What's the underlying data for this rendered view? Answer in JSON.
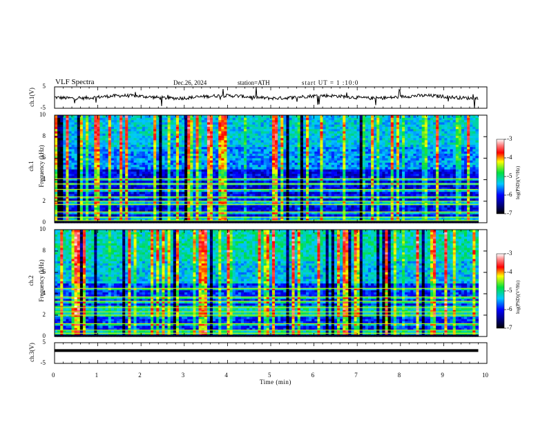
{
  "header": {
    "title": "VLF Spectra",
    "date": "Dec.26, 2024",
    "station": "station=ATH",
    "start": "start UT = 1 :10:0"
  },
  "chart_data": [
    {
      "type": "line",
      "ylabel": "ch.1(V)",
      "ylim": [
        -5,
        5
      ],
      "yticks": [
        "5",
        "-5"
      ],
      "xlim": [
        0,
        10
      ],
      "series_shape": "noisy waveform near 0 V with sharp spikes",
      "baseline_v": 0.3
    },
    {
      "type": "heatmap",
      "ylabel_top": "ch.1",
      "ylabel": "Frequency (kHz)",
      "xlim": [
        0,
        10
      ],
      "ylim": [
        0,
        10
      ],
      "yticks": [
        "0",
        "2",
        "4",
        "6",
        "8",
        "10"
      ],
      "data_end_min": 9.8,
      "colorbar": {
        "label": "log(PSD)(V²/Hz)",
        "range": [
          -7,
          -3
        ],
        "ticks": [
          "-3",
          "-4",
          "-5",
          "-6",
          "-7"
        ]
      },
      "bands_khz": [
        0.2,
        0.5,
        1.0,
        1.7,
        2.0,
        2.4,
        3.1,
        3.6,
        4.1
      ]
    },
    {
      "type": "heatmap",
      "ylabel_top": "ch.2",
      "ylabel": "Frequency (kHz)",
      "xlim": [
        0,
        10
      ],
      "ylim": [
        0,
        10
      ],
      "yticks": [
        "0",
        "2",
        "4",
        "6",
        "8",
        "10"
      ],
      "data_end_min": 9.8,
      "colorbar": {
        "label": "log(PSD)(V²/Hz)",
        "range": [
          -7,
          -3
        ],
        "ticks": [
          "-3",
          "-4",
          "-5",
          "-6",
          "-7"
        ]
      },
      "bands_khz": [
        0.3,
        0.6,
        1.2,
        2.0,
        2.3,
        2.7,
        3.3,
        3.7,
        4.5
      ]
    },
    {
      "type": "line",
      "ylabel": "ch.3(V)",
      "ylim": [
        -5,
        5
      ],
      "yticks": [
        "5",
        "-5"
      ],
      "xlim": [
        0,
        10
      ],
      "series_shape": "flat thick line",
      "baseline_v": 1.2
    }
  ],
  "xaxis": {
    "label": "Time (min)",
    "ticks": [
      "0",
      "1",
      "2",
      "3",
      "4",
      "5",
      "6",
      "7",
      "8",
      "9",
      "10"
    ]
  },
  "colors": {
    "low": "#000000",
    "mid": "#00e040",
    "high": "#ff0000",
    "top": "#ffffff"
  }
}
